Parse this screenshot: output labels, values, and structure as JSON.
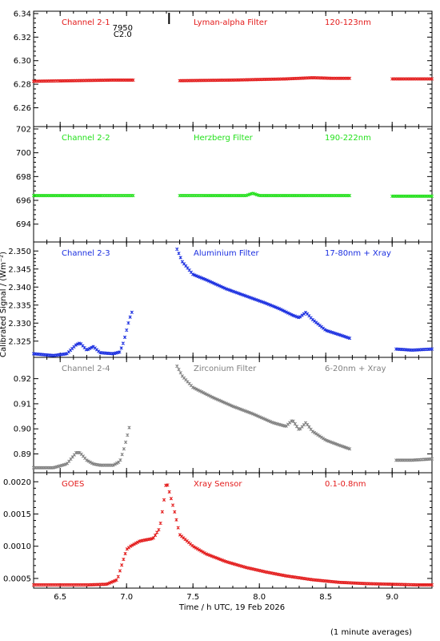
{
  "figure": {
    "xlabel": "Time / h UTC, 19 Feb 2026",
    "ylabel": "Calibrated Signal / (Wm⁻²)",
    "footnote": "(1 minute averages)",
    "x_ticks": [
      "6.5",
      "7.0",
      "7.5",
      "8.0",
      "8.5",
      "9.0"
    ],
    "xlim": [
      6.3,
      9.3
    ],
    "flare_marker": {
      "x": 7.32,
      "label_top": "7950",
      "label_bottom": "C2.0"
    }
  },
  "chart_data": [
    {
      "type": "scatter",
      "name": "Channel 2-1",
      "label_channel": "Channel 2-1",
      "label_filter": "Lyman-alpha Filter",
      "label_band": "120-123nm",
      "color": "#e31a1a",
      "ylim": [
        6.244,
        6.342
      ],
      "y_ticks": [
        "6.26",
        "6.28",
        "6.30",
        "6.32",
        "6.34"
      ],
      "segments": [
        {
          "x": [
            6.3,
            6.6,
            6.9,
            7.05
          ],
          "y": [
            6.2825,
            6.283,
            6.2835,
            6.2835
          ]
        },
        {
          "x": [
            7.4,
            7.8,
            8.2,
            8.4,
            8.55,
            8.68
          ],
          "y": [
            6.283,
            6.2835,
            6.2845,
            6.2855,
            6.285,
            6.285
          ]
        },
        {
          "x": [
            9.0,
            9.3
          ],
          "y": [
            6.2845,
            6.2845
          ]
        }
      ]
    },
    {
      "type": "scatter",
      "name": "Channel 2-2",
      "label_channel": "Channel 2-2",
      "label_filter": "Herzberg Filter",
      "label_band": "190-222nm",
      "color": "#22e01a",
      "ylim": [
        692.5,
        702.2
      ],
      "y_ticks": [
        "694",
        "696",
        "698",
        "700",
        "702"
      ],
      "segments": [
        {
          "x": [
            6.3,
            6.6,
            7.05
          ],
          "y": [
            696.4,
            696.4,
            696.4
          ]
        },
        {
          "x": [
            7.4,
            7.9,
            7.95,
            8.0,
            8.68
          ],
          "y": [
            696.4,
            696.4,
            696.6,
            696.4,
            696.4
          ]
        },
        {
          "x": [
            9.0,
            9.3
          ],
          "y": [
            696.35,
            696.35
          ]
        }
      ]
    },
    {
      "type": "scatter",
      "name": "Channel 2-3",
      "label_channel": "Channel 2-3",
      "label_filter": "Aluminium Filter",
      "label_band": "17-80nm + Xray",
      "color": "#1a2ee0",
      "ylim": [
        2.3205,
        2.3525
      ],
      "y_ticks": [
        "2.325",
        "2.330",
        "2.335",
        "2.340",
        "2.345",
        "2.350"
      ],
      "segments": [
        {
          "x": [
            6.3,
            6.45,
            6.55,
            6.62,
            6.65,
            6.7,
            6.75,
            6.8,
            6.9,
            6.95,
            6.98,
            7.0,
            7.02,
            7.04
          ],
          "y": [
            2.3215,
            2.321,
            2.3215,
            2.324,
            2.3245,
            2.3225,
            2.3235,
            2.3218,
            2.3215,
            2.322,
            2.325,
            2.328,
            2.331,
            2.333
          ]
        },
        {
          "x": [
            7.38,
            7.42,
            7.5,
            7.6,
            7.75,
            7.9,
            8.05,
            8.15,
            8.25,
            8.3,
            8.35,
            8.4,
            8.5,
            8.6,
            8.68
          ],
          "y": [
            2.3505,
            2.347,
            2.3435,
            2.342,
            2.3395,
            2.3375,
            2.3355,
            2.334,
            2.3322,
            2.3315,
            2.333,
            2.331,
            2.328,
            2.3268,
            2.3258
          ]
        },
        {
          "x": [
            9.03,
            9.15,
            9.3
          ],
          "y": [
            2.3228,
            2.3225,
            2.3228
          ]
        }
      ]
    },
    {
      "type": "scatter",
      "name": "Channel 2-4",
      "label_channel": "Channel 2-4",
      "label_filter": "Zirconium Filter",
      "label_band": "6-20nm + Xray",
      "color": "#808080",
      "ylim": [
        0.8825,
        0.9285
      ],
      "y_ticks": [
        "0.89",
        "0.90",
        "0.91",
        "0.92"
      ],
      "segments": [
        {
          "x": [
            6.3,
            6.45,
            6.55,
            6.62,
            6.65,
            6.7,
            6.75,
            6.8,
            6.9,
            6.95,
            6.98,
            7.0,
            7.02
          ],
          "y": [
            0.8845,
            0.8845,
            0.886,
            0.8905,
            0.8905,
            0.8875,
            0.886,
            0.8855,
            0.8855,
            0.887,
            0.892,
            0.896,
            0.9005
          ]
        },
        {
          "x": [
            7.38,
            7.42,
            7.5,
            7.65,
            7.8,
            7.95,
            8.1,
            8.2,
            8.25,
            8.3,
            8.35,
            8.4,
            8.5,
            8.6,
            8.68
          ],
          "y": [
            0.925,
            0.921,
            0.9165,
            0.9125,
            0.909,
            0.906,
            0.9025,
            0.901,
            0.9035,
            0.8995,
            0.9025,
            0.899,
            0.8955,
            0.8935,
            0.892
          ]
        },
        {
          "x": [
            9.03,
            9.15,
            9.3
          ],
          "y": [
            0.8875,
            0.8875,
            0.888
          ]
        }
      ]
    },
    {
      "type": "scatter",
      "name": "GOES",
      "label_channel": "GOES",
      "label_filter": "Xray Sensor",
      "label_band": "0.1-0.8nm",
      "color": "#e31a1a",
      "ylim": [
        0.00035,
        0.00214
      ],
      "y_ticks": [
        "0.0005",
        "0.0010",
        "0.0015",
        "0.0020"
      ],
      "segments": [
        {
          "x": [
            6.3,
            6.5,
            6.7,
            6.85,
            6.93,
            6.97,
            7.0,
            7.03,
            7.1,
            7.15,
            7.2,
            7.25,
            7.28,
            7.3,
            7.33,
            7.36,
            7.4,
            7.5,
            7.6,
            7.75,
            7.9,
            8.05,
            8.2,
            8.4,
            8.6,
            8.8,
            9.0,
            9.2,
            9.3
          ],
          "y": [
            0.0004,
            0.0004,
            0.0004,
            0.00041,
            0.00048,
            0.00075,
            0.00095,
            0.001,
            0.00108,
            0.0011,
            0.00112,
            0.00128,
            0.00168,
            0.00202,
            0.00178,
            0.00155,
            0.00118,
            0.001,
            0.00088,
            0.00076,
            0.00067,
            0.0006,
            0.00054,
            0.00048,
            0.00044,
            0.00042,
            0.00041,
            0.0004,
            0.0004
          ]
        }
      ]
    }
  ]
}
